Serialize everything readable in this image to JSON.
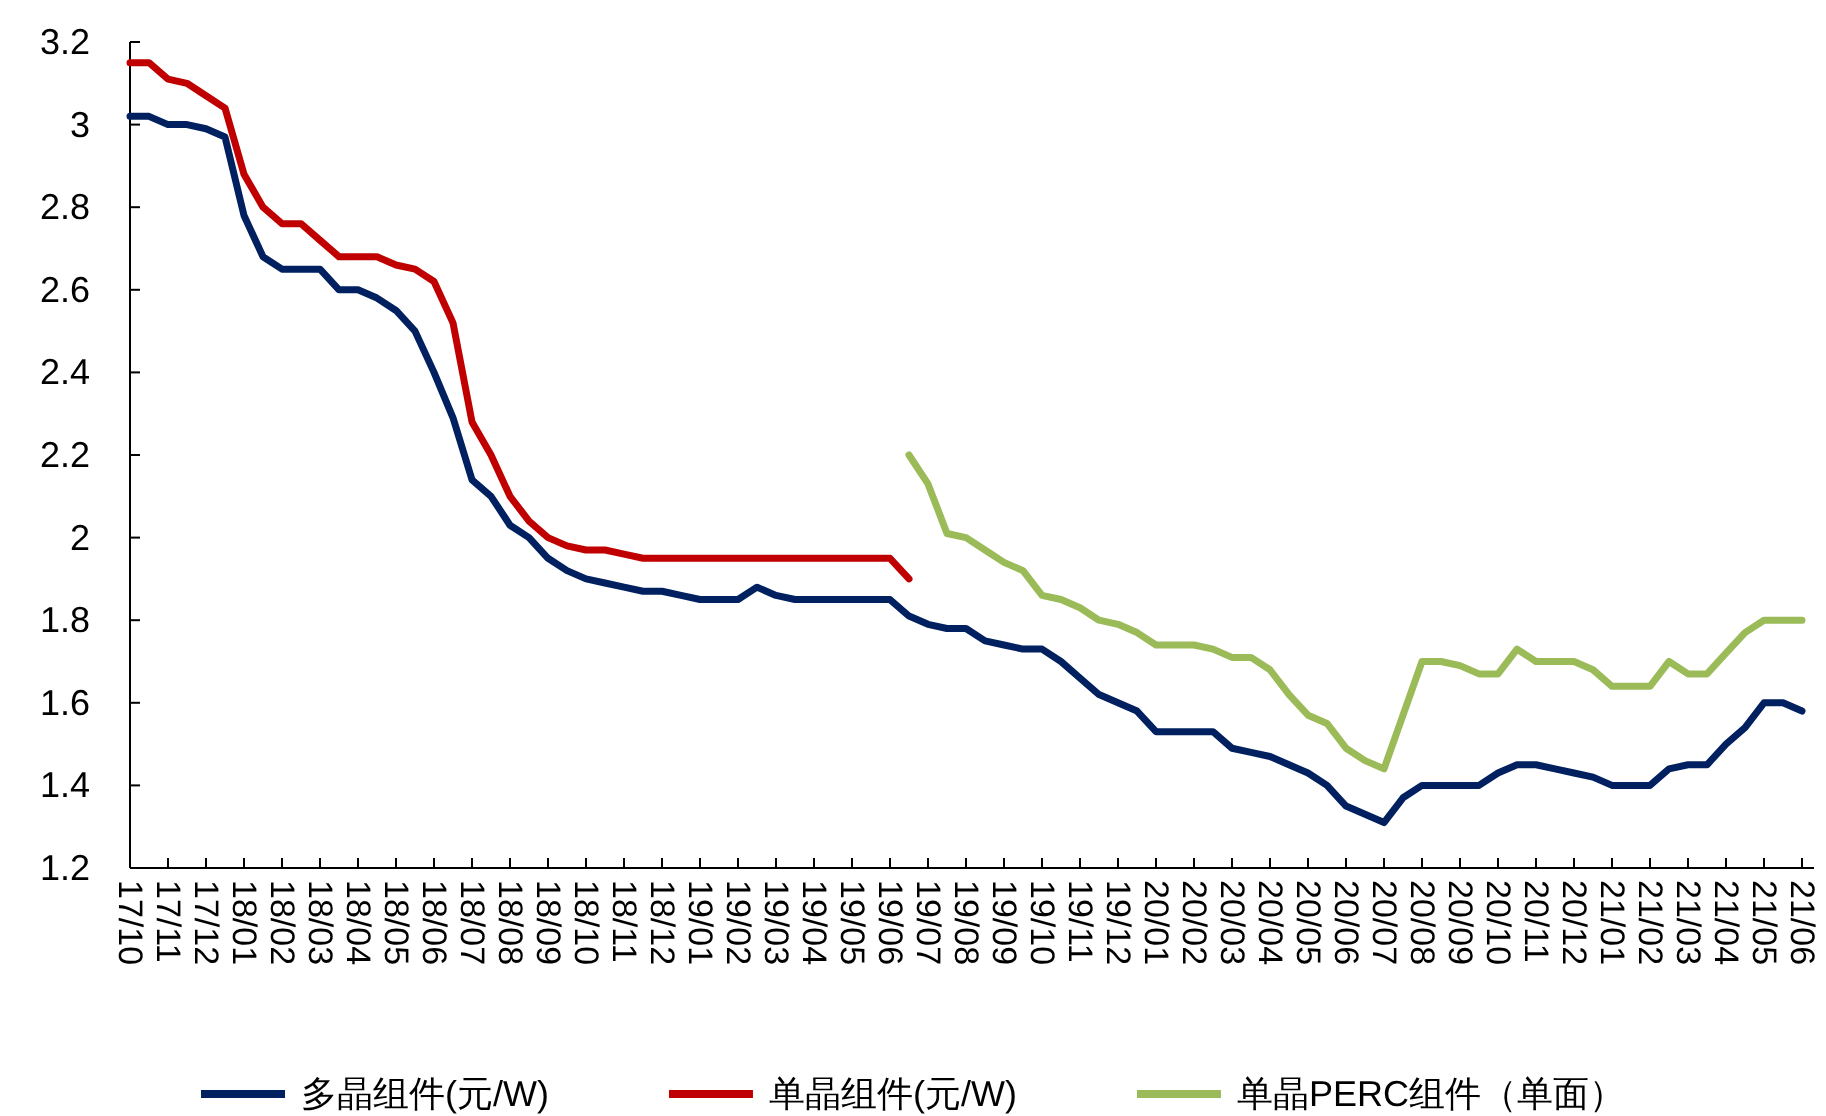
{
  "chart_data": {
    "type": "line",
    "legend": "bottom",
    "categories": [
      "17/10",
      null,
      "17/11",
      null,
      "17/12",
      null,
      "18/01",
      null,
      "18/02",
      null,
      "18/03",
      null,
      "18/04",
      null,
      "18/05",
      null,
      "18/06",
      null,
      "18/07",
      null,
      "18/08",
      null,
      "18/09",
      null,
      "18/10",
      null,
      "18/11",
      null,
      "18/12",
      null,
      "19/01",
      null,
      "19/02",
      null,
      "19/03",
      null,
      "19/04",
      null,
      "19/05",
      null,
      "19/06",
      null,
      "19/07",
      null,
      "19/08",
      null,
      "19/09",
      null,
      "19/10",
      null,
      "19/11",
      null,
      "19/12",
      null,
      "20/01",
      null,
      "20/02",
      null,
      "20/03",
      null,
      "20/04",
      null,
      "20/05",
      null,
      "20/06",
      null,
      "20/07",
      null,
      "20/08",
      null,
      "20/09",
      null,
      "20/10",
      null,
      "20/11",
      null,
      "20/12",
      null,
      "21/01",
      null,
      "21/02",
      null,
      "21/03",
      null,
      "21/04",
      null,
      "21/05",
      null,
      "21/06"
    ],
    "ylim": [
      1.2,
      3.2
    ],
    "yticks": [
      1.2,
      1.4,
      1.6,
      1.8,
      2,
      2.2,
      2.4,
      2.6,
      2.8,
      3,
      3.2
    ],
    "series": [
      {
        "name": "多晶组件(元/W)",
        "color": "#002060",
        "values": [
          3.02,
          3.02,
          3.0,
          3.0,
          2.99,
          2.97,
          2.78,
          2.68,
          2.65,
          2.65,
          2.65,
          2.6,
          2.6,
          2.58,
          2.55,
          2.5,
          2.4,
          2.29,
          2.14,
          2.1,
          2.03,
          2.0,
          1.95,
          1.92,
          1.9,
          1.89,
          1.88,
          1.87,
          1.87,
          1.86,
          1.85,
          1.85,
          1.85,
          1.88,
          1.86,
          1.85,
          1.85,
          1.85,
          1.85,
          1.85,
          1.85,
          1.81,
          1.79,
          1.78,
          1.78,
          1.75,
          1.74,
          1.73,
          1.73,
          1.7,
          1.66,
          1.62,
          1.6,
          1.58,
          1.53,
          1.53,
          1.53,
          1.53,
          1.49,
          1.48,
          1.47,
          1.45,
          1.43,
          1.4,
          1.35,
          1.33,
          1.31,
          1.37,
          1.4,
          1.4,
          1.4,
          1.4,
          1.43,
          1.45,
          1.45,
          1.44,
          1.43,
          1.42,
          1.4,
          1.4,
          1.4,
          1.44,
          1.45,
          1.45,
          1.5,
          1.54,
          1.6,
          1.6,
          1.58
        ]
      },
      {
        "name": "单晶组件(元/W)",
        "color": "#c00000",
        "values": [
          3.15,
          3.15,
          3.11,
          3.1,
          3.07,
          3.04,
          2.88,
          2.8,
          2.76,
          2.76,
          2.72,
          2.68,
          2.68,
          2.68,
          2.66,
          2.65,
          2.62,
          2.52,
          2.28,
          2.2,
          2.1,
          2.04,
          2.0,
          1.98,
          1.97,
          1.97,
          1.96,
          1.95,
          1.95,
          1.95,
          1.95,
          1.95,
          1.95,
          1.95,
          1.95,
          1.95,
          1.95,
          1.95,
          1.95,
          1.95,
          1.95,
          1.9,
          null,
          null,
          null,
          null,
          null,
          null,
          null,
          null,
          null,
          null,
          null,
          null,
          null,
          null,
          null,
          null,
          null,
          null,
          null,
          null,
          null,
          null,
          null,
          null,
          null,
          null,
          null,
          null,
          null,
          null,
          null,
          null,
          null,
          null,
          null,
          null,
          null,
          null,
          null,
          null,
          null,
          null,
          null,
          null,
          null,
          null,
          null
        ]
      },
      {
        "name": "单晶PERC组件（单面）",
        "color": "#9bbb59",
        "values": [
          null,
          null,
          null,
          null,
          null,
          null,
          null,
          null,
          null,
          null,
          null,
          null,
          null,
          null,
          null,
          null,
          null,
          null,
          null,
          null,
          null,
          null,
          null,
          null,
          null,
          null,
          null,
          null,
          null,
          null,
          null,
          null,
          null,
          null,
          null,
          null,
          null,
          null,
          null,
          null,
          null,
          2.2,
          2.13,
          2.01,
          2.0,
          1.97,
          1.94,
          1.92,
          1.86,
          1.85,
          1.83,
          1.8,
          1.79,
          1.77,
          1.74,
          1.74,
          1.74,
          1.73,
          1.71,
          1.71,
          1.68,
          1.62,
          1.57,
          1.55,
          1.49,
          1.46,
          1.44,
          1.57,
          1.7,
          1.7,
          1.69,
          1.67,
          1.67,
          1.73,
          1.7,
          1.7,
          1.7,
          1.68,
          1.64,
          1.64,
          1.64,
          1.7,
          1.67,
          1.67,
          1.72,
          1.77,
          1.8,
          1.8,
          1.8
        ]
      }
    ]
  }
}
